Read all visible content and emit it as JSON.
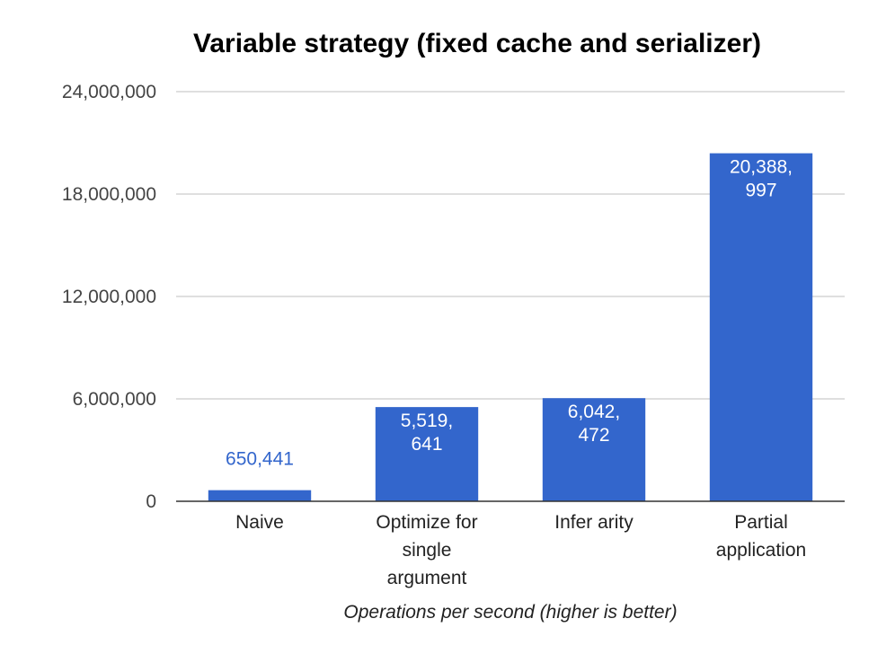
{
  "chart_data": {
    "type": "bar",
    "title": "Variable strategy (fixed cache and serializer)",
    "xlabel": "Operations per second (higher is better)",
    "ylabel": "",
    "categories": [
      [
        "Naive"
      ],
      [
        "Optimize for",
        "single",
        "argument"
      ],
      [
        "Infer arity"
      ],
      [
        "Partial",
        "application"
      ]
    ],
    "values": [
      650441,
      5519641,
      6042472,
      20388997
    ],
    "data_labels": [
      [
        "650,441"
      ],
      [
        "5,519,",
        "641"
      ],
      [
        "6,042,",
        "472"
      ],
      [
        "20,388,",
        "997"
      ]
    ],
    "ylim": [
      0,
      24000000
    ],
    "yticks": [
      0,
      6000000,
      12000000,
      18000000,
      24000000
    ],
    "ytick_labels": [
      "0",
      "6,000,000",
      "12,000,000",
      "18,000,000",
      "24,000,000"
    ],
    "grid": true,
    "legend": "none",
    "bar_color": "#3366cc",
    "gridline_color": "#cccccc",
    "axis_color": "#333333"
  }
}
